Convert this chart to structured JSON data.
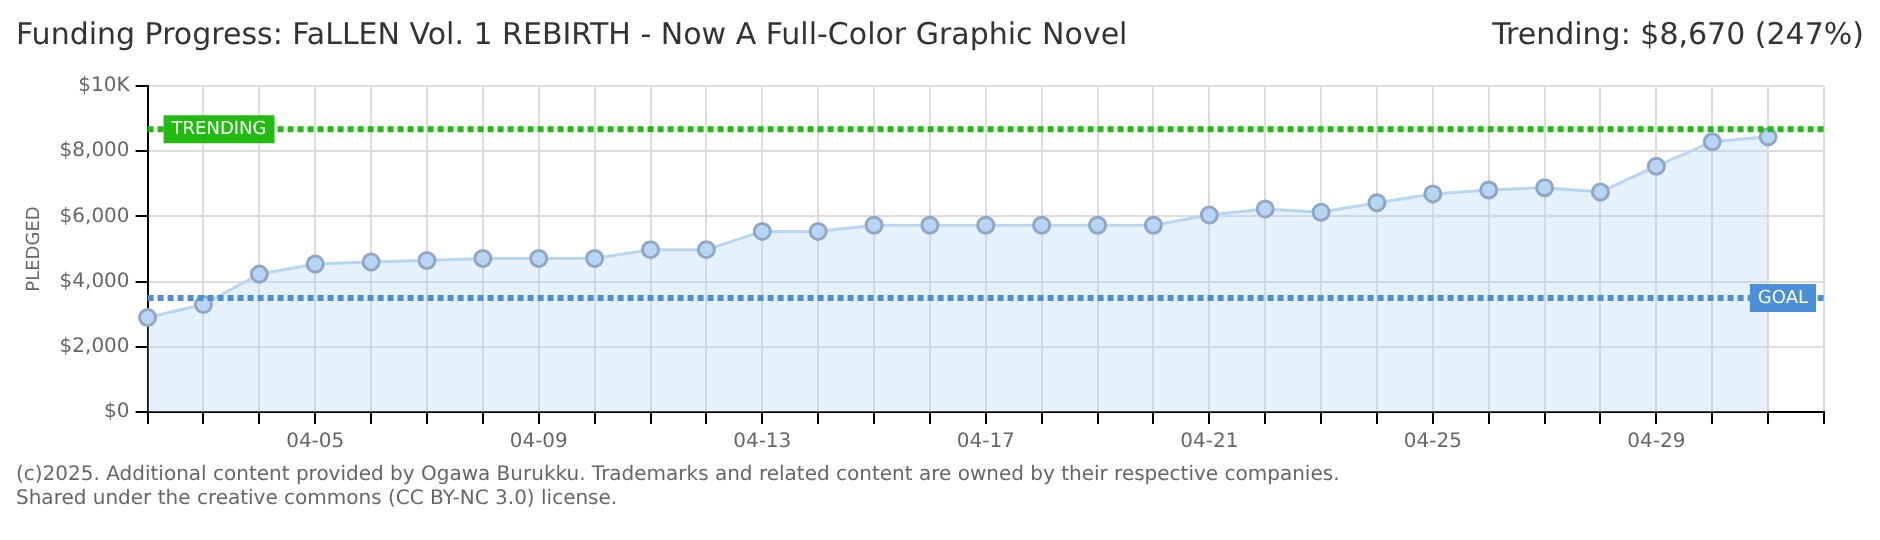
{
  "chart_data": {
    "type": "area",
    "title": "Funding Progress: FaLLEN Vol. 1 REBIRTH - Now A Full-Color Graphic Novel",
    "subtitle": "Trending: $8,670 (247%)",
    "ylabel": "PLEDGED",
    "categories": [
      null,
      null,
      null,
      "04-05",
      null,
      null,
      null,
      "04-09",
      null,
      null,
      null,
      "04-13",
      null,
      null,
      null,
      "04-17",
      null,
      null,
      null,
      "04-21",
      null,
      null,
      null,
      "04-25",
      null,
      null,
      null,
      "04-29",
      null,
      null,
      null
    ],
    "series": [
      {
        "color": "#b8d6f4",
        "values": [
          2900,
          3300,
          4230,
          4540,
          4600,
          4650,
          4710,
          4710,
          4710,
          4980,
          4980,
          5540,
          5540,
          5730,
          5730,
          5730,
          5730,
          5730,
          5730,
          6040,
          6230,
          6130,
          6420,
          6690,
          6810,
          6880,
          6750,
          7540,
          8290,
          8440,
          null
        ]
      }
    ],
    "ylim": [
      0,
      10000
    ],
    "yticks": [
      {
        "value": 0,
        "label": "$0"
      },
      {
        "value": 2000,
        "label": "$2,000"
      },
      {
        "value": 4000,
        "label": "$4,000"
      },
      {
        "value": 6000,
        "label": "$6,000"
      },
      {
        "value": 8000,
        "label": "$8,000"
      },
      {
        "value": 10000,
        "label": "$10K"
      }
    ],
    "ref_lines": [
      {
        "axis": "y",
        "value": 8670,
        "label": "TRENDING",
        "color": "#22bb11",
        "line_style": "dotted"
      },
      {
        "axis": "y",
        "value": 3500,
        "label": "GOAL",
        "color": "#4a8fd8",
        "line_style": "dotted"
      }
    ],
    "grid": true,
    "legend": false,
    "marker": "circle",
    "annotations": [
      "(c)2025. Additional content provided by Ogawa Burukku. Trademarks and related content are owned by their respective companies.",
      "Shared under the creative commons (CC BY-NC 3.0) license."
    ]
  }
}
